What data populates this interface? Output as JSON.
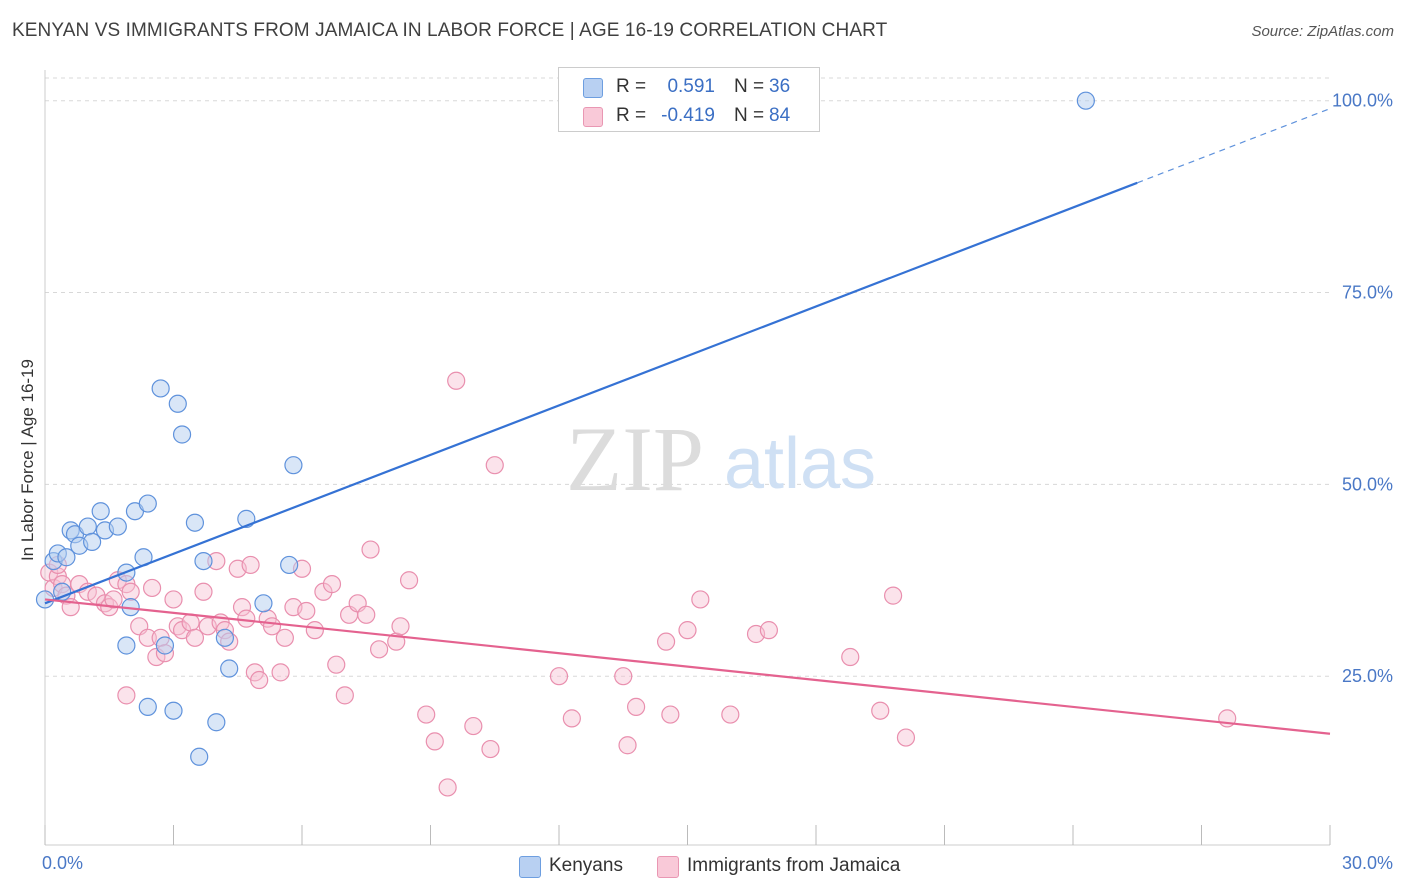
{
  "title": "KENYAN VS IMMIGRANTS FROM JAMAICA IN LABOR FORCE | AGE 16-19 CORRELATION CHART",
  "source": "Source: ZipAtlas.com",
  "watermark": {
    "zip": "ZIP",
    "atlas": "atlas"
  },
  "colors": {
    "blue": "#3572d4",
    "blue_fill": "#b3cdf0",
    "blue_stroke": "#5f92dc",
    "pink": "#e4628f",
    "pink_fill": "#f7c2d3",
    "pink_stroke": "#e98fae",
    "tick": "#4a78c6",
    "grid": "#d8d8d8"
  },
  "legend": {
    "rows": [
      {
        "r_label": "R =",
        "r_value": "0.591",
        "n_label": "N =",
        "n_value": "36"
      },
      {
        "r_label": "R =",
        "r_value": "-0.419",
        "n_label": "N =",
        "n_value": "84"
      }
    ]
  },
  "bottom_legend": [
    "Kenyans",
    "Immigrants from Jamaica"
  ],
  "chart_data": {
    "type": "scatter",
    "title": "KENYAN VS IMMIGRANTS FROM JAMAICA IN LABOR FORCE | AGE 16-19 CORRELATION CHART",
    "xlabel": "",
    "ylabel": "In Labor Force | Age 16-19",
    "xlim": [
      0,
      30
    ],
    "ylim": [
      3,
      104
    ],
    "x_tick_labels": [
      "0.0%",
      "30.0%"
    ],
    "y_ticks": [
      25,
      50,
      75,
      100
    ],
    "y_tick_labels": [
      "25.0%",
      "50.0%",
      "75.0%",
      "100.0%"
    ],
    "grid": true,
    "legend_position": "top-center",
    "series": [
      {
        "name": "Kenyans",
        "r": 0.591,
        "n": 36,
        "trend": {
          "x0": 0.0,
          "y0": 34.5,
          "x1": 25.5,
          "y1": 89.3,
          "x_dash_end": 30.0
        },
        "points": [
          [
            0.0,
            35.0
          ],
          [
            0.2,
            40.0
          ],
          [
            0.3,
            41.0
          ],
          [
            0.4,
            36.0
          ],
          [
            0.5,
            40.5
          ],
          [
            0.6,
            44.0
          ],
          [
            0.7,
            43.5
          ],
          [
            0.8,
            42.0
          ],
          [
            1.0,
            44.5
          ],
          [
            1.1,
            42.5
          ],
          [
            1.3,
            46.5
          ],
          [
            1.4,
            44.0
          ],
          [
            1.7,
            44.5
          ],
          [
            1.9,
            38.5
          ],
          [
            1.9,
            29.0
          ],
          [
            2.0,
            34.0
          ],
          [
            2.1,
            46.5
          ],
          [
            2.3,
            40.5
          ],
          [
            2.4,
            47.5
          ],
          [
            2.4,
            21.0
          ],
          [
            2.7,
            62.5
          ],
          [
            2.8,
            29.0
          ],
          [
            3.0,
            20.5
          ],
          [
            3.1,
            60.5
          ],
          [
            3.2,
            56.5
          ],
          [
            3.5,
            45.0
          ],
          [
            3.6,
            14.5
          ],
          [
            3.7,
            40.0
          ],
          [
            4.0,
            19.0
          ],
          [
            4.2,
            30.0
          ],
          [
            4.3,
            26.0
          ],
          [
            4.7,
            45.5
          ],
          [
            5.1,
            34.5
          ],
          [
            5.7,
            39.5
          ],
          [
            5.8,
            52.5
          ],
          [
            24.3,
            100.0
          ]
        ]
      },
      {
        "name": "Immigrants from Jamaica",
        "r": -0.419,
        "n": 84,
        "trend": {
          "x0": 0.0,
          "y0": 35.0,
          "x1": 30.0,
          "y1": 17.5
        },
        "points": [
          [
            0.1,
            38.5
          ],
          [
            0.2,
            36.5
          ],
          [
            0.3,
            38.0
          ],
          [
            0.4,
            37.0
          ],
          [
            0.5,
            35.5
          ],
          [
            0.6,
            34.0
          ],
          [
            0.8,
            37.0
          ],
          [
            1.0,
            36.0
          ],
          [
            1.2,
            35.5
          ],
          [
            1.4,
            34.5
          ],
          [
            1.5,
            34.0
          ],
          [
            1.6,
            35.0
          ],
          [
            1.7,
            37.5
          ],
          [
            1.9,
            37.0
          ],
          [
            1.9,
            22.5
          ],
          [
            2.0,
            36.0
          ],
          [
            2.2,
            31.5
          ],
          [
            2.4,
            30.0
          ],
          [
            2.5,
            36.5
          ],
          [
            2.6,
            27.5
          ],
          [
            2.7,
            30.0
          ],
          [
            2.8,
            28.0
          ],
          [
            3.0,
            35.0
          ],
          [
            3.1,
            31.5
          ],
          [
            3.2,
            31.0
          ],
          [
            3.4,
            32.0
          ],
          [
            3.5,
            30.0
          ],
          [
            3.7,
            36.0
          ],
          [
            3.8,
            31.5
          ],
          [
            4.0,
            40.0
          ],
          [
            4.1,
            32.0
          ],
          [
            4.2,
            31.0
          ],
          [
            4.3,
            29.5
          ],
          [
            4.5,
            39.0
          ],
          [
            4.6,
            34.0
          ],
          [
            4.7,
            32.5
          ],
          [
            4.8,
            39.5
          ],
          [
            4.9,
            25.5
          ],
          [
            5.0,
            24.5
          ],
          [
            5.2,
            32.5
          ],
          [
            5.3,
            31.5
          ],
          [
            5.5,
            25.5
          ],
          [
            5.6,
            30.0
          ],
          [
            5.8,
            34.0
          ],
          [
            6.0,
            39.0
          ],
          [
            6.1,
            33.5
          ],
          [
            6.3,
            31.0
          ],
          [
            6.5,
            36.0
          ],
          [
            6.7,
            37.0
          ],
          [
            6.8,
            26.5
          ],
          [
            7.0,
            22.5
          ],
          [
            7.1,
            33.0
          ],
          [
            7.3,
            34.5
          ],
          [
            7.5,
            33.0
          ],
          [
            7.6,
            41.5
          ],
          [
            7.8,
            28.5
          ],
          [
            8.2,
            29.5
          ],
          [
            8.3,
            31.5
          ],
          [
            8.5,
            37.5
          ],
          [
            8.9,
            20.0
          ],
          [
            9.1,
            16.5
          ],
          [
            9.4,
            10.5
          ],
          [
            9.6,
            63.5
          ],
          [
            10.0,
            18.5
          ],
          [
            10.4,
            15.5
          ],
          [
            10.5,
            52.5
          ],
          [
            12.0,
            25.0
          ],
          [
            12.3,
            19.5
          ],
          [
            13.5,
            25.0
          ],
          [
            13.6,
            16.0
          ],
          [
            13.8,
            21.0
          ],
          [
            14.5,
            29.5
          ],
          [
            14.6,
            20.0
          ],
          [
            15.0,
            31.0
          ],
          [
            15.3,
            35.0
          ],
          [
            16.0,
            20.0
          ],
          [
            16.6,
            30.5
          ],
          [
            16.9,
            31.0
          ],
          [
            18.8,
            27.5
          ],
          [
            19.5,
            20.5
          ],
          [
            19.8,
            35.5
          ],
          [
            20.1,
            17.0
          ],
          [
            27.6,
            19.5
          ],
          [
            0.3,
            39.5
          ]
        ]
      }
    ]
  }
}
